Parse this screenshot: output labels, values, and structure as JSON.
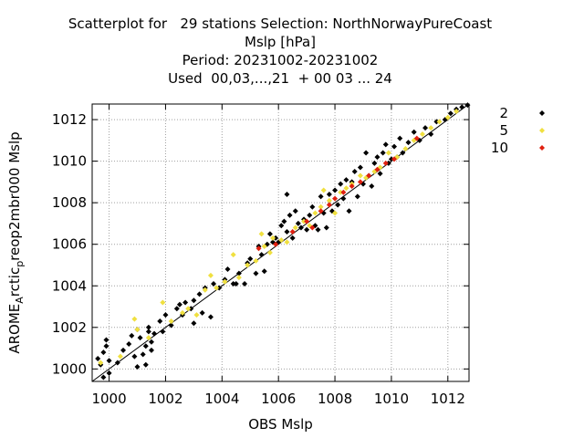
{
  "chart_data": {
    "type": "scatter",
    "title_lines": [
      "Scatterplot for   29 stations Selection: NorthNorwayPureCoast",
      "Mslp [hPa]",
      "Period: 20231002-20231002",
      "Used  00,03,...,21  + 00 03 ... 24"
    ],
    "xlabel": "OBS Mslp",
    "ylabel_parts": {
      "base": "AROME",
      "sub1": "A",
      "mid": "rctic",
      "sub2": "p",
      "tail": "reop2mbr000 Mslp"
    },
    "xlim": [
      999.4,
      1012.75
    ],
    "ylim": [
      999.4,
      1012.75
    ],
    "xticks": [
      1000,
      1002,
      1004,
      1006,
      1008,
      1010,
      1012
    ],
    "yticks": [
      1000,
      1002,
      1004,
      1006,
      1008,
      1010,
      1012
    ],
    "grid": true,
    "legend_position": "outside-right",
    "diagonal_line": [
      [
        999.4,
        999.4
      ],
      [
        1012.75,
        1012.75
      ]
    ],
    "series": [
      {
        "name": "2",
        "color": "#000000",
        "points": [
          [
            999.6,
            1000.5
          ],
          [
            999.7,
            1000.2
          ],
          [
            999.8,
            999.6
          ],
          [
            999.8,
            1000.8
          ],
          [
            999.9,
            1001.1
          ],
          [
            999.9,
            1001.4
          ],
          [
            1000.0,
            999.8
          ],
          [
            1000.0,
            1000.4
          ],
          [
            1000.3,
            1000.3
          ],
          [
            1000.5,
            1000.9
          ],
          [
            1000.7,
            1001.2
          ],
          [
            1000.8,
            1001.6
          ],
          [
            1000.9,
            1000.6
          ],
          [
            1001.0,
            1000.1
          ],
          [
            1001.0,
            1001.9
          ],
          [
            1001.1,
            1001.5
          ],
          [
            1001.2,
            1000.7
          ],
          [
            1001.3,
            1000.2
          ],
          [
            1001.3,
            1001.1
          ],
          [
            1001.4,
            1002.0
          ],
          [
            1001.4,
            1001.8
          ],
          [
            1001.5,
            1001.3
          ],
          [
            1001.5,
            1000.9
          ],
          [
            1001.6,
            1001.7
          ],
          [
            1001.8,
            1002.3
          ],
          [
            1001.9,
            1001.8
          ],
          [
            1002.0,
            1002.6
          ],
          [
            1002.2,
            1002.1
          ],
          [
            1002.4,
            1002.9
          ],
          [
            1002.5,
            1003.1
          ],
          [
            1002.6,
            1002.6
          ],
          [
            1002.7,
            1003.2
          ],
          [
            1002.9,
            1002.9
          ],
          [
            1003.0,
            1003.3
          ],
          [
            1003.0,
            1002.2
          ],
          [
            1003.2,
            1003.6
          ],
          [
            1003.3,
            1002.7
          ],
          [
            1003.4,
            1003.9
          ],
          [
            1003.6,
            1002.5
          ],
          [
            1003.7,
            1004.1
          ],
          [
            1003.9,
            1003.9
          ],
          [
            1004.1,
            1004.3
          ],
          [
            1004.2,
            1004.8
          ],
          [
            1004.4,
            1004.1
          ],
          [
            1004.5,
            1004.1
          ],
          [
            1004.6,
            1004.6
          ],
          [
            1004.8,
            1004.1
          ],
          [
            1004.9,
            1005.1
          ],
          [
            1005.0,
            1005.3
          ],
          [
            1005.2,
            1004.6
          ],
          [
            1005.3,
            1005.9
          ],
          [
            1005.4,
            1005.5
          ],
          [
            1005.5,
            1004.7
          ],
          [
            1005.6,
            1006.0
          ],
          [
            1005.7,
            1006.5
          ],
          [
            1005.8,
            1006.1
          ],
          [
            1005.9,
            1006.3
          ],
          [
            1006.0,
            1006.1
          ],
          [
            1006.1,
            1006.9
          ],
          [
            1006.2,
            1007.1
          ],
          [
            1006.3,
            1008.4
          ],
          [
            1006.3,
            1006.6
          ],
          [
            1006.4,
            1007.4
          ],
          [
            1006.5,
            1006.3
          ],
          [
            1006.6,
            1007.6
          ],
          [
            1006.7,
            1007.0
          ],
          [
            1006.8,
            1006.8
          ],
          [
            1006.9,
            1007.2
          ],
          [
            1007.0,
            1006.7
          ],
          [
            1007.1,
            1007.4
          ],
          [
            1007.2,
            1007.8
          ],
          [
            1007.3,
            1006.9
          ],
          [
            1007.4,
            1006.7
          ],
          [
            1007.5,
            1008.3
          ],
          [
            1007.6,
            1007.5
          ],
          [
            1007.7,
            1006.8
          ],
          [
            1007.8,
            1008.4
          ],
          [
            1007.9,
            1007.6
          ],
          [
            1008.0,
            1008.6
          ],
          [
            1008.1,
            1007.9
          ],
          [
            1008.2,
            1008.9
          ],
          [
            1008.3,
            1008.2
          ],
          [
            1008.4,
            1009.1
          ],
          [
            1008.5,
            1007.6
          ],
          [
            1008.6,
            1009.0
          ],
          [
            1008.7,
            1009.5
          ],
          [
            1008.8,
            1008.3
          ],
          [
            1008.9,
            1009.7
          ],
          [
            1009.0,
            1008.9
          ],
          [
            1009.1,
            1010.4
          ],
          [
            1009.2,
            1009.3
          ],
          [
            1009.3,
            1008.8
          ],
          [
            1009.4,
            1009.9
          ],
          [
            1009.5,
            1010.2
          ],
          [
            1009.6,
            1009.4
          ],
          [
            1009.7,
            1010.4
          ],
          [
            1009.8,
            1010.8
          ],
          [
            1009.9,
            1009.9
          ],
          [
            1010.0,
            1010.1
          ],
          [
            1010.1,
            1010.7
          ],
          [
            1010.2,
            1010.2
          ],
          [
            1010.3,
            1011.1
          ],
          [
            1010.4,
            1010.4
          ],
          [
            1010.6,
            1010.9
          ],
          [
            1010.8,
            1011.4
          ],
          [
            1011.0,
            1011.0
          ],
          [
            1011.2,
            1011.6
          ],
          [
            1011.4,
            1011.3
          ],
          [
            1011.6,
            1011.9
          ],
          [
            1011.9,
            1012.0
          ],
          [
            1012.1,
            1012.3
          ],
          [
            1012.3,
            1012.5
          ],
          [
            1012.5,
            1012.6
          ],
          [
            1012.7,
            1012.7
          ]
        ]
      },
      {
        "name": "5",
        "color": "#f0e040",
        "points": [
          [
            999.7,
            1000.3
          ],
          [
            1000.4,
            1000.6
          ],
          [
            1000.9,
            1002.4
          ],
          [
            1001.0,
            1001.9
          ],
          [
            1001.4,
            1001.5
          ],
          [
            1001.9,
            1003.2
          ],
          [
            1002.2,
            1002.3
          ],
          [
            1002.6,
            1002.7
          ],
          [
            1002.8,
            1002.9
          ],
          [
            1003.1,
            1002.6
          ],
          [
            1003.4,
            1003.8
          ],
          [
            1003.6,
            1004.5
          ],
          [
            1003.8,
            1003.9
          ],
          [
            1004.1,
            1004.2
          ],
          [
            1004.4,
            1005.5
          ],
          [
            1004.6,
            1004.4
          ],
          [
            1004.9,
            1005.0
          ],
          [
            1005.2,
            1005.2
          ],
          [
            1005.4,
            1006.5
          ],
          [
            1005.5,
            1005.9
          ],
          [
            1005.7,
            1005.6
          ],
          [
            1005.8,
            1006.3
          ],
          [
            1006.1,
            1006.2
          ],
          [
            1006.3,
            1006.1
          ],
          [
            1006.6,
            1006.8
          ],
          [
            1006.9,
            1007.1
          ],
          [
            1007.1,
            1006.9
          ],
          [
            1007.3,
            1007.5
          ],
          [
            1007.5,
            1007.8
          ],
          [
            1007.6,
            1008.6
          ],
          [
            1007.8,
            1008.1
          ],
          [
            1008.0,
            1007.5
          ],
          [
            1008.2,
            1008.5
          ],
          [
            1008.4,
            1008.7
          ],
          [
            1008.6,
            1008.9
          ],
          [
            1008.9,
            1009.3
          ],
          [
            1009.1,
            1009.2
          ],
          [
            1009.4,
            1009.5
          ],
          [
            1009.6,
            1009.7
          ],
          [
            1009.9,
            1010.4
          ],
          [
            1010.2,
            1010.2
          ],
          [
            1010.5,
            1010.6
          ],
          [
            1010.8,
            1011.0
          ],
          [
            1011.1,
            1011.3
          ],
          [
            1011.4,
            1011.6
          ],
          [
            1011.7,
            1011.9
          ],
          [
            1012.0,
            1012.1
          ],
          [
            1012.3,
            1012.4
          ]
        ]
      },
      {
        "name": "10",
        "color": "#e02010",
        "points": [
          [
            1005.3,
            1005.8
          ],
          [
            1005.9,
            1006.0
          ],
          [
            1006.5,
            1006.6
          ],
          [
            1007.0,
            1007.1
          ],
          [
            1007.2,
            1006.8
          ],
          [
            1007.5,
            1007.6
          ],
          [
            1007.8,
            1007.9
          ],
          [
            1008.0,
            1008.2
          ],
          [
            1008.3,
            1008.5
          ],
          [
            1008.6,
            1008.8
          ],
          [
            1008.9,
            1009.0
          ],
          [
            1009.2,
            1009.3
          ],
          [
            1009.5,
            1009.6
          ],
          [
            1009.8,
            1009.9
          ],
          [
            1010.1,
            1010.1
          ],
          [
            1010.9,
            1011.1
          ]
        ]
      }
    ]
  }
}
